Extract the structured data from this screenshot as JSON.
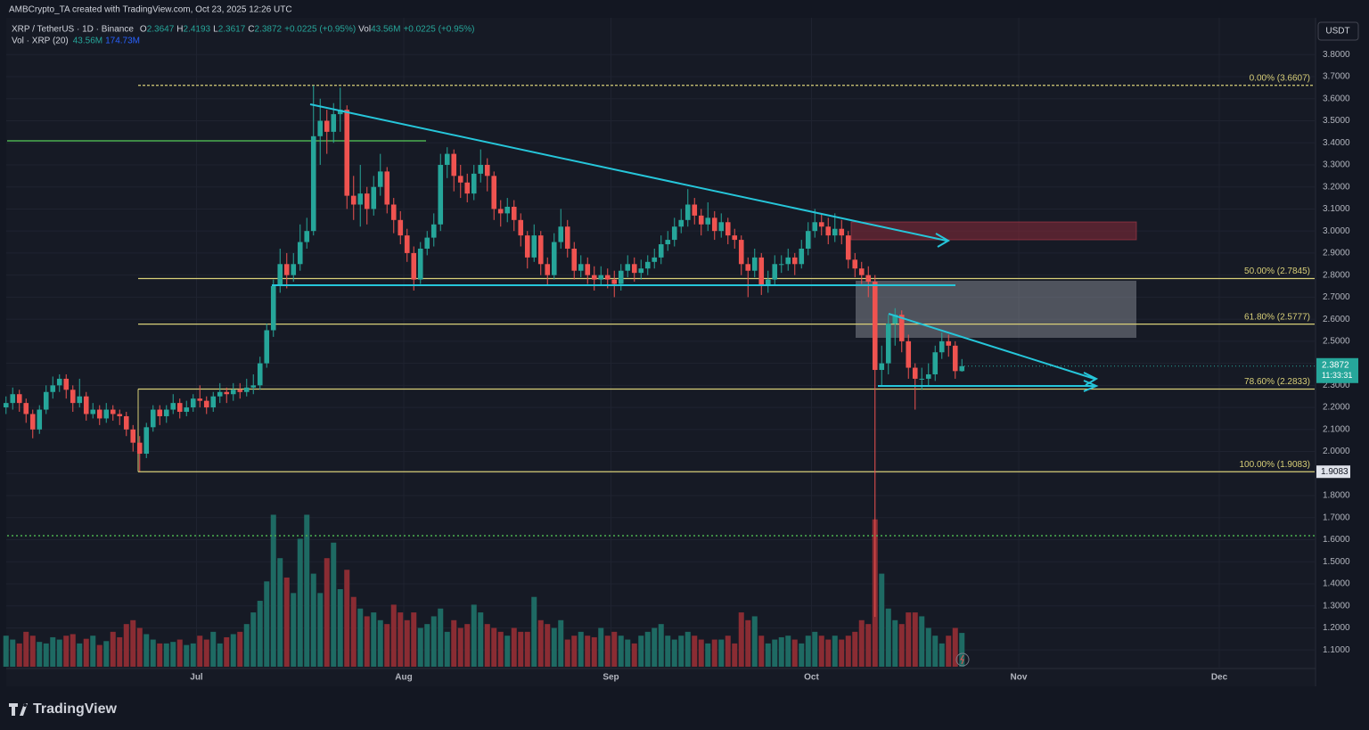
{
  "chart_data": {
    "type": "candlestick",
    "author_line": "AMBCrypto_TA created with TradingView.com, Oct 23, 2025 12:26 UTC",
    "symbol_line": "XRP / TetherUS · 1D · Binance",
    "ohlc_labels": [
      "O",
      "H",
      "L",
      "C"
    ],
    "change": "+0.0225 (+0.95%)",
    "vol_label": "Vol",
    "vol_value_label": "43.56M",
    "change_repeat": "+0.0225 (+0.95%)",
    "volume_pane": {
      "title": "Vol · XRP (20)",
      "value": "43.56M",
      "ma": "174.73M"
    },
    "currency": "USDT",
    "countdown": "11:33:31",
    "brand": "TradingView",
    "xticks": [
      "Jul",
      "Aug",
      "Sep",
      "Oct",
      "Nov",
      "Dec"
    ],
    "ylim": [
      0.935,
      3.975
    ],
    "yticks": [
      {
        "value": 3.8,
        "label": "3.8000"
      },
      {
        "value": 3.7,
        "label": "3.7000"
      },
      {
        "value": 3.6,
        "label": "3.6000"
      },
      {
        "value": 3.5,
        "label": "3.5000"
      },
      {
        "value": 3.4,
        "label": "3.4000"
      },
      {
        "value": 3.3,
        "label": "3.3000"
      },
      {
        "value": 3.2,
        "label": "3.2000"
      },
      {
        "value": 3.1,
        "label": "3.1000"
      },
      {
        "value": 3.0,
        "label": "3.0000"
      },
      {
        "value": 2.9,
        "label": "2.9000"
      },
      {
        "value": 2.8,
        "label": "2.8000"
      },
      {
        "value": 2.7,
        "label": "2.7000"
      },
      {
        "value": 2.6,
        "label": "2.6000"
      },
      {
        "value": 2.5,
        "label": "2.5000"
      },
      {
        "value": 2.4,
        "label": "2.4000"
      },
      {
        "value": 2.3,
        "label": "2.3000"
      },
      {
        "value": 2.2,
        "label": "2.2000"
      },
      {
        "value": 2.1,
        "label": "2.1000"
      },
      {
        "value": 2.0,
        "label": "2.0000"
      },
      {
        "value": 1.9,
        "label": "1.9000"
      },
      {
        "value": 1.8,
        "label": "1.8000"
      },
      {
        "value": 1.7,
        "label": "1.7000"
      },
      {
        "value": 1.6,
        "label": "1.6000"
      },
      {
        "value": 1.5,
        "label": "1.5000"
      },
      {
        "value": 1.4,
        "label": "1.4000"
      },
      {
        "value": 1.3,
        "label": "1.3000"
      },
      {
        "value": 1.2,
        "label": "1.2000"
      },
      {
        "value": 1.1,
        "label": "1.1000"
      }
    ],
    "fib": [
      {
        "label": "0.00% (3.6607)",
        "value": 3.6607
      },
      {
        "label": "50.00% (2.7845)",
        "value": 2.7845
      },
      {
        "label": "61.80% (2.5777)",
        "value": 2.5777
      },
      {
        "label": "78.60% (2.2833)",
        "value": 2.2833
      },
      {
        "label": "100.00% (1.9083)",
        "value": 1.9083
      }
    ],
    "up_color": "#26a69a",
    "down_color": "#ef5350",
    "vol_up_color": "#1e6a63",
    "vol_down_color": "#8a2c33",
    "fib_color": "#d8cf78",
    "open": [
      2.2,
      2.22,
      2.26,
      2.22,
      2.17,
      2.1,
      2.19,
      2.27,
      2.3,
      2.33,
      2.28,
      2.22,
      2.25,
      2.17,
      2.19,
      2.15,
      2.19,
      2.17,
      2.16,
      2.1,
      2.04,
      1.99,
      2.11,
      2.19,
      2.16,
      2.19,
      2.22,
      2.18,
      2.2,
      2.24,
      2.23,
      2.2,
      2.25,
      2.27,
      2.26,
      2.28,
      2.27,
      2.29,
      2.3,
      2.4,
      2.55,
      2.75,
      2.85,
      2.8,
      2.85,
      2.95,
      3.0,
      3.43,
      3.5,
      3.45,
      3.53,
      3.55,
      3.16,
      3.12,
      3.17,
      3.1,
      3.2,
      3.27,
      3.12,
      3.05,
      2.98,
      2.9,
      2.78,
      2.92,
      2.97,
      3.03,
      3.3,
      3.35,
      3.25,
      3.22,
      3.17,
      3.26,
      3.3,
      3.25,
      3.1,
      3.08,
      3.11,
      3.05,
      2.98,
      2.88,
      2.98,
      2.85,
      2.8,
      2.95,
      3.02,
      2.92,
      2.82,
      2.85,
      2.8,
      2.78,
      2.8,
      2.78,
      2.76,
      2.82,
      2.85,
      2.81,
      2.83,
      2.86,
      2.88,
      2.94,
      2.96,
      3.02,
      3.05,
      3.12,
      3.07,
      3.03,
      3.06,
      3.0,
      3.04,
      2.98,
      2.96,
      2.85,
      2.82,
      2.88,
      2.75,
      2.78,
      2.85,
      2.85,
      2.88,
      2.85,
      2.92,
      3.0,
      3.04,
      3.02,
      2.98,
      3.01,
      2.98,
      2.87,
      2.83,
      2.8,
      2.77,
      2.37,
      2.4,
      2.58,
      2.62,
      2.5,
      2.38,
      2.33,
      2.33,
      2.35,
      2.45,
      2.5,
      2.48,
      2.3647
    ],
    "high": [
      2.25,
      2.29,
      2.28,
      2.24,
      2.19,
      2.21,
      2.3,
      2.34,
      2.35,
      2.35,
      2.3,
      2.33,
      2.27,
      2.22,
      2.21,
      2.22,
      2.21,
      2.19,
      2.18,
      2.12,
      2.07,
      2.13,
      2.21,
      2.21,
      2.21,
      2.26,
      2.24,
      2.23,
      2.26,
      2.3,
      2.25,
      2.27,
      2.31,
      2.29,
      2.31,
      2.31,
      2.33,
      2.35,
      2.43,
      2.58,
      2.78,
      2.92,
      2.9,
      2.9,
      3.03,
      3.06,
      3.66,
      3.6,
      3.55,
      3.58,
      3.65,
      3.57,
      3.25,
      3.3,
      3.2,
      3.25,
      3.35,
      3.29,
      3.15,
      3.09,
      3.01,
      2.93,
      2.95,
      3.0,
      3.08,
      3.35,
      3.38,
      3.37,
      3.3,
      3.26,
      3.3,
      3.37,
      3.33,
      3.27,
      3.14,
      3.15,
      3.14,
      3.08,
      3.0,
      3.03,
      3.0,
      2.88,
      2.99,
      3.1,
      3.05,
      2.95,
      2.89,
      2.88,
      2.84,
      2.84,
      2.83,
      2.82,
      2.85,
      2.89,
      2.88,
      2.87,
      2.89,
      2.92,
      2.98,
      3.0,
      3.06,
      3.1,
      3.19,
      3.15,
      3.1,
      3.13,
      3.09,
      3.08,
      3.06,
      3.01,
      2.98,
      2.88,
      2.92,
      2.9,
      2.82,
      2.89,
      2.89,
      2.92,
      2.9,
      2.96,
      3.04,
      3.1,
      3.08,
      3.06,
      3.08,
      3.05,
      3.0,
      2.9,
      2.86,
      2.84,
      2.8,
      2.48,
      2.62,
      2.65,
      2.64,
      2.53,
      2.4,
      2.38,
      2.4,
      2.48,
      2.54,
      2.53,
      2.5,
      2.4193
    ],
    "low": [
      2.17,
      2.19,
      2.18,
      2.13,
      2.06,
      2.08,
      2.17,
      2.24,
      2.27,
      2.24,
      2.18,
      2.2,
      2.14,
      2.15,
      2.12,
      2.13,
      2.14,
      2.12,
      2.07,
      2.0,
      1.91,
      1.97,
      2.09,
      2.12,
      2.13,
      2.17,
      2.15,
      2.16,
      2.18,
      2.2,
      2.17,
      2.18,
      2.22,
      2.22,
      2.23,
      2.24,
      2.25,
      2.26,
      2.28,
      2.38,
      2.52,
      2.72,
      2.74,
      2.77,
      2.82,
      2.92,
      2.98,
      3.3,
      3.35,
      3.4,
      3.45,
      3.1,
      3.05,
      3.02,
      3.03,
      3.07,
      3.16,
      3.08,
      2.99,
      2.94,
      2.86,
      2.73,
      2.76,
      2.89,
      2.93,
      3.0,
      3.24,
      3.18,
      3.15,
      3.13,
      3.14,
      3.22,
      3.18,
      3.05,
      3.02,
      3.04,
      3.0,
      2.93,
      2.83,
      2.86,
      2.8,
      2.75,
      2.78,
      2.92,
      2.88,
      2.78,
      2.79,
      2.76,
      2.73,
      2.75,
      2.74,
      2.7,
      2.73,
      2.79,
      2.77,
      2.78,
      2.8,
      2.83,
      2.85,
      2.91,
      2.93,
      2.99,
      3.02,
      3.03,
      2.98,
      3.0,
      2.96,
      2.97,
      2.94,
      2.92,
      2.8,
      2.7,
      2.79,
      2.71,
      2.72,
      2.75,
      2.81,
      2.82,
      2.8,
      2.83,
      2.89,
      2.97,
      2.98,
      2.94,
      2.95,
      2.94,
      2.83,
      2.79,
      2.76,
      2.7,
      1.25,
      2.3,
      2.35,
      2.48,
      2.45,
      2.33,
      2.19,
      2.28,
      2.3,
      2.32,
      2.42,
      2.43,
      2.33,
      2.3617
    ],
    "close": [
      2.22,
      2.26,
      2.22,
      2.17,
      2.1,
      2.19,
      2.27,
      2.3,
      2.33,
      2.28,
      2.22,
      2.25,
      2.17,
      2.19,
      2.15,
      2.19,
      2.17,
      2.16,
      2.1,
      2.04,
      1.99,
      2.11,
      2.19,
      2.16,
      2.19,
      2.22,
      2.18,
      2.2,
      2.24,
      2.23,
      2.2,
      2.25,
      2.27,
      2.26,
      2.28,
      2.27,
      2.29,
      2.3,
      2.4,
      2.55,
      2.75,
      2.85,
      2.8,
      2.85,
      2.95,
      3.0,
      3.43,
      3.5,
      3.45,
      3.53,
      3.55,
      3.16,
      3.12,
      3.17,
      3.1,
      3.2,
      3.27,
      3.12,
      3.05,
      2.98,
      2.9,
      2.78,
      2.92,
      2.97,
      3.03,
      3.3,
      3.35,
      3.25,
      3.22,
      3.17,
      3.26,
      3.3,
      3.25,
      3.1,
      3.08,
      3.11,
      3.05,
      2.98,
      2.88,
      2.98,
      2.85,
      2.8,
      2.95,
      3.02,
      2.92,
      2.82,
      2.85,
      2.8,
      2.78,
      2.8,
      2.78,
      2.76,
      2.82,
      2.85,
      2.81,
      2.83,
      2.86,
      2.88,
      2.94,
      2.96,
      3.02,
      3.05,
      3.12,
      3.07,
      3.03,
      3.06,
      3.0,
      3.04,
      2.98,
      2.96,
      2.85,
      2.82,
      2.88,
      2.75,
      2.78,
      2.85,
      2.85,
      2.88,
      2.85,
      2.92,
      3.0,
      3.04,
      3.02,
      2.98,
      3.01,
      2.98,
      2.87,
      2.83,
      2.8,
      2.77,
      2.37,
      2.4,
      2.58,
      2.62,
      2.5,
      2.38,
      2.33,
      2.33,
      2.35,
      2.45,
      2.5,
      2.48,
      2.3647,
      2.3872
    ],
    "volume": [
      40,
      35,
      30,
      45,
      40,
      32,
      30,
      38,
      35,
      40,
      42,
      30,
      36,
      40,
      28,
      33,
      45,
      38,
      55,
      60,
      50,
      42,
      35,
      30,
      30,
      32,
      35,
      28,
      30,
      40,
      35,
      45,
      30,
      38,
      42,
      45,
      55,
      70,
      85,
      110,
      196,
      140,
      115,
      95,
      165,
      196,
      120,
      95,
      140,
      160,
      100,
      125,
      90,
      75,
      65,
      70,
      60,
      55,
      80,
      70,
      60,
      70,
      50,
      55,
      65,
      75,
      45,
      60,
      50,
      55,
      80,
      70,
      55,
      50,
      45,
      40,
      50,
      45,
      45,
      90,
      60,
      55,
      50,
      60,
      35,
      40,
      45,
      40,
      38,
      50,
      40,
      45,
      40,
      35,
      30,
      40,
      45,
      50,
      55,
      40,
      35,
      40,
      45,
      40,
      35,
      30,
      35,
      35,
      40,
      30,
      70,
      60,
      65,
      40,
      30,
      35,
      38,
      40,
      35,
      30,
      40,
      45,
      40,
      35,
      40,
      35,
      40,
      45,
      60,
      55,
      190,
      120,
      75,
      60,
      55,
      70,
      70,
      65,
      50,
      40,
      30,
      40,
      50,
      43.56
    ]
  }
}
